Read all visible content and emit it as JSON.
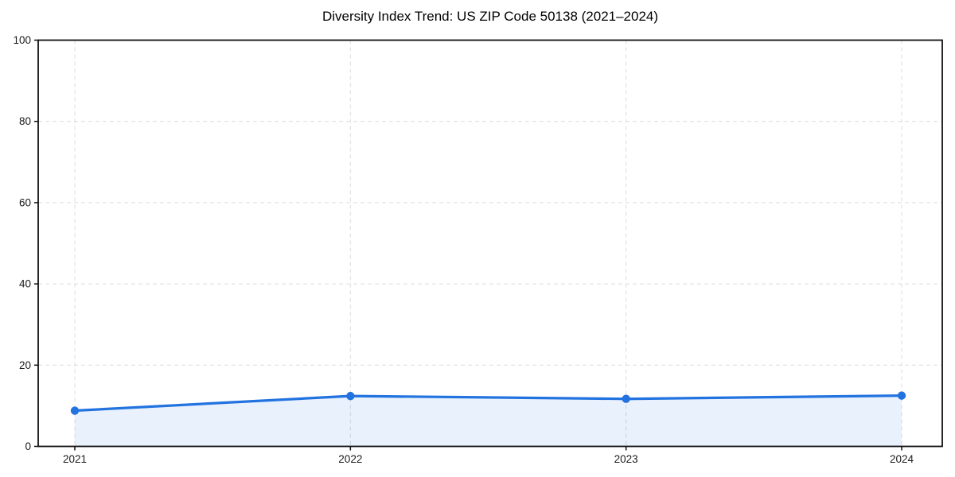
{
  "figure": {
    "background_color": "#ffffff"
  },
  "chart_data": {
    "type": "line",
    "title": "Diversity Index Trend: US ZIP Code 50138 (2021–2024)",
    "categories": [
      "2021",
      "2022",
      "2023",
      "2024"
    ],
    "series": [
      {
        "name": "Diversity Index",
        "values": [
          8.8,
          12.4,
          11.7,
          12.5
        ]
      }
    ],
    "xlabel": "",
    "ylabel": "",
    "ylim": [
      0,
      100
    ],
    "yticks": [
      0,
      20,
      40,
      60,
      80,
      100
    ],
    "grid": true,
    "grid_style": "dashed",
    "legend_position": "none",
    "style": {
      "line_color": "#2273e0",
      "marker_color": "#2273e0",
      "area_fill_color": "rgba(34, 115, 224, 0.10)",
      "grid_color": "#dcdcdc",
      "spine_color": "#111111",
      "tick_label_color": "#1a1a1a",
      "title_color": "#000000"
    }
  }
}
